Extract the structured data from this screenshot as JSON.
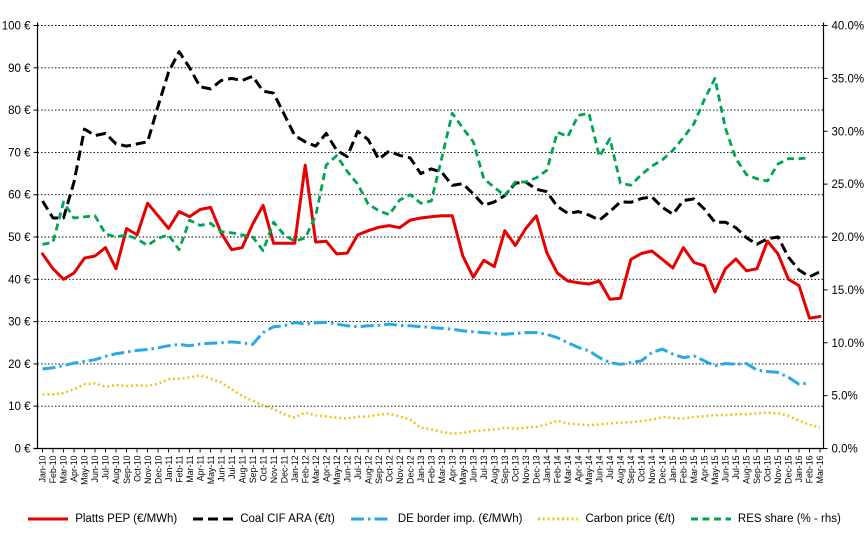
{
  "chart_data": {
    "type": "line",
    "title": "",
    "grid": true,
    "legend_position": "bottom",
    "left_axis": {
      "unit": "EUR",
      "min": 0,
      "max": 100,
      "step": 10,
      "tick_labels": [
        "0 €",
        "10 €",
        "20 €",
        "30 €",
        "40 €",
        "50 €",
        "60 €",
        "70 €",
        "80 €",
        "90 €",
        "100 €"
      ]
    },
    "right_axis": {
      "unit": "%",
      "min": 0,
      "max": 40,
      "step": 5,
      "tick_labels": [
        "0.0%",
        "5.0%",
        "10.0%",
        "15.0%",
        "20.0%",
        "25.0%",
        "30.0%",
        "35.0%",
        "40.0%"
      ]
    },
    "x_labels": [
      "Jan-10",
      "Feb-10",
      "Mar-10",
      "Apr-10",
      "May-10",
      "Jun-10",
      "Jul-10",
      "Aug-10",
      "Sep-10",
      "Oct-10",
      "Nov-10",
      "Dec-10",
      "Jan-11",
      "Feb-11",
      "Mar-11",
      "Apr-11",
      "May-11",
      "Jun-11",
      "Jul-11",
      "Aug-11",
      "Sep-11",
      "Oct-11",
      "Nov-11",
      "Dec-11",
      "Jan-12",
      "Feb-12",
      "Mar-12",
      "Apr-12",
      "May-12",
      "Jun-12",
      "Jul-12",
      "Aug-12",
      "Sep-12",
      "Oct-12",
      "Nov-12",
      "Dec-12",
      "Jan-13",
      "Feb-13",
      "Mar-13",
      "Apr-13",
      "May-13",
      "Jun-13",
      "Jul-13",
      "Aug-13",
      "Sep-13",
      "Oct-13",
      "Nov-13",
      "Dec-13",
      "Jan-14",
      "Feb-14",
      "Mar-14",
      "Apr-14",
      "May-14",
      "Jun-14",
      "Jul-14",
      "Aug-14",
      "Sep-14",
      "Oct-14",
      "Nov-14",
      "Dec-14",
      "Jan-15",
      "Feb-15",
      "Mar-15",
      "Apr-15",
      "May-15",
      "Jun-15",
      "Jul-15",
      "Aug-15",
      "Sep-15",
      "Oct-15",
      "Nov-15",
      "Dec-15",
      "Jan-16",
      "Feb-16",
      "Mar-16"
    ],
    "series": [
      {
        "name": "Platts PEP (€/MWh)",
        "axis": "left",
        "color": "#e60000",
        "style": "solid",
        "width": 3,
        "values": [
          46,
          42.5,
          40,
          41.5,
          45,
          45.5,
          47.5,
          42.5,
          52,
          50.5,
          58,
          55,
          52,
          56,
          54.8,
          56.5,
          57,
          51,
          47,
          47.5,
          53,
          57.5,
          48.5,
          48.5,
          48.5,
          67,
          48.8,
          49,
          46,
          46.2,
          50.5,
          51.5,
          52.3,
          52.7,
          52.2,
          54,
          54.5,
          54.8,
          55,
          55,
          45.5,
          40.5,
          44.5,
          43,
          51.5,
          48,
          52,
          55,
          46.3,
          41.5,
          39.6,
          39.2,
          38.9,
          39.6,
          35.3,
          35.5,
          44.7,
          46.1,
          46.7,
          44.7,
          42.7,
          47.5,
          44,
          43.2,
          37,
          42.5,
          44.8,
          42,
          42.5,
          49,
          46,
          40,
          38.5,
          30.8,
          31.2
        ]
      },
      {
        "name": "Coal CIF ARA (€/t)",
        "axis": "left",
        "color": "#000000",
        "style": "dashed",
        "width": 3,
        "values": [
          58.5,
          54.5,
          54.5,
          63,
          75.5,
          74,
          74.5,
          72,
          71.5,
          72,
          72.5,
          81,
          89,
          93.8,
          90,
          85.5,
          85,
          87,
          87.5,
          87,
          88,
          84.5,
          84,
          79,
          74,
          72.5,
          71.5,
          74.5,
          70.5,
          69,
          75,
          73,
          68.4,
          70.3,
          69.3,
          68.7,
          65,
          66.1,
          65.3,
          62.2,
          62.6,
          60.2,
          57.5,
          58.3,
          59.8,
          62.7,
          63,
          61.3,
          60.7,
          57.2,
          55.6,
          56,
          55.2,
          54,
          56,
          58.3,
          58.2,
          59.1,
          59.5,
          57,
          55.4,
          58.6,
          59,
          56.6,
          53.5,
          53.5,
          52.2,
          49.8,
          48.3,
          49.6,
          50,
          45.2,
          42.2,
          40.6,
          41.8
        ]
      },
      {
        "name": "DE border imp. (€/MWh)",
        "axis": "left",
        "color": "#29a9e1",
        "style": "dashdot",
        "width": 3,
        "values": [
          18.8,
          19.1,
          19.6,
          20.2,
          20.6,
          21,
          21.8,
          22.4,
          22.8,
          23.2,
          23.4,
          23.8,
          24.3,
          24.6,
          24.3,
          24.7,
          24.9,
          25,
          25.2,
          25,
          24.6,
          27.4,
          28.8,
          29,
          29.8,
          29.4,
          29.7,
          29.8,
          29.4,
          29,
          28.8,
          29,
          29.1,
          29.4,
          29.1,
          29,
          28.8,
          28.6,
          28.4,
          28.2,
          27.8,
          27.6,
          27.4,
          27.2,
          27,
          27.2,
          27.4,
          27.4,
          27,
          26.2,
          25,
          23.9,
          23.1,
          21.5,
          20.3,
          19.9,
          20.3,
          20.7,
          22.7,
          23.5,
          22.3,
          21.5,
          21.9,
          20.7,
          19.5,
          20.1,
          19.9,
          20.1,
          18.5,
          18.2,
          18,
          16.8,
          15.2,
          15.5,
          null
        ]
      },
      {
        "name": "Carbon price (€/t)",
        "axis": "left",
        "color": "#e8c71d",
        "style": "dotted",
        "width": 2.5,
        "values": [
          12.8,
          12.8,
          13.1,
          14,
          15.2,
          15.4,
          14.6,
          15,
          14.8,
          14.9,
          14.8,
          15.3,
          16.4,
          16.5,
          16.8,
          17.3,
          16.5,
          15.6,
          14,
          12.4,
          11.3,
          10.2,
          9.3,
          8.1,
          7.3,
          8.5,
          7.8,
          7.6,
          7.3,
          7.1,
          7.5,
          7.6,
          8,
          8.2,
          7.6,
          6.8,
          4.9,
          4.5,
          3.9,
          3.5,
          3.7,
          4.1,
          4.3,
          4.5,
          4.9,
          4.7,
          4.9,
          5.1,
          5.7,
          6.6,
          5.9,
          5.7,
          5.5,
          5.7,
          5.9,
          6.1,
          6.2,
          6.5,
          6.8,
          7.4,
          7.2,
          7.1,
          7.5,
          7.6,
          7.9,
          7.9,
          8.1,
          8.1,
          8.3,
          8.5,
          8.3,
          7.7,
          6.6,
          5.6,
          5
        ]
      },
      {
        "name": "RES share (% - rhs)",
        "axis": "right",
        "color": "#00a551",
        "style": "dashed-short",
        "width": 2.8,
        "values": [
          19.3,
          19.5,
          23.3,
          21.8,
          21.9,
          22,
          20.3,
          20,
          20.2,
          19.8,
          19.2,
          19.9,
          20.2,
          18.8,
          21.6,
          21.1,
          21.3,
          20.5,
          20.4,
          20.2,
          20,
          18.7,
          21.4,
          20.2,
          19.6,
          19.9,
          22,
          26.8,
          27.7,
          26.2,
          25,
          23.1,
          22.5,
          22.1,
          23.5,
          24,
          23.2,
          23.4,
          27.5,
          31.7,
          30.3,
          29,
          25.5,
          24.7,
          23.9,
          25.2,
          25.2,
          25.6,
          26.3,
          29.9,
          29.5,
          31.5,
          31.7,
          27.6,
          29.3,
          25.1,
          24.9,
          25.9,
          26.7,
          27.3,
          28.2,
          29.4,
          30.7,
          33,
          35,
          30.3,
          27.4,
          25.9,
          25.5,
          25.3,
          26.9,
          27.4,
          27.4,
          27.5,
          null
        ]
      }
    ]
  }
}
